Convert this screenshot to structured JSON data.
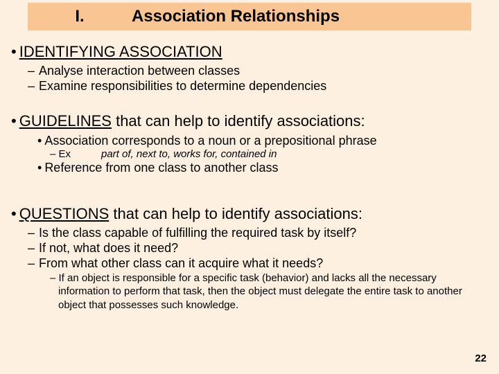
{
  "colors": {
    "background": "#fdf0e0",
    "title_bar": "#f9c593",
    "text": "#000000"
  },
  "title": {
    "number": "I.",
    "text": "Association Relationships"
  },
  "sections": [
    {
      "heading_underlined": "IDENTIFYING ASSOCIATION",
      "heading_rest": "",
      "sub_dashes": [
        "Analyse interaction between classes",
        "Examine responsibilities to determine dependencies"
      ]
    },
    {
      "heading_underlined": "GUIDELINES",
      "heading_rest": " that can help to identify associations:",
      "sub_bullets": [
        "Association corresponds to a noun or a prepositional phrase"
      ],
      "example": {
        "label": "– Ex",
        "text": "part of, next to, works for, contained in"
      },
      "sub_bullets2": [
        "Reference from one class to another class"
      ]
    },
    {
      "heading_underlined": "QUESTIONS",
      "heading_rest": " that can help to identify associations:",
      "sub_dashes": [
        "Is the class capable of fulfilling the required task by itself?",
        "If not, what does it need?",
        "From what other class can it acquire what it needs?"
      ],
      "note": "– If an object is responsible for a specific task (behavior) and lacks all the necessary information to perform that task, then the object must delegate the entire task to another object that possesses such knowledge."
    }
  ],
  "page_number": "22"
}
